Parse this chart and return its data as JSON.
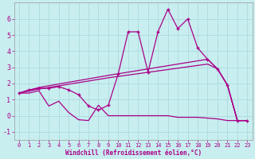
{
  "background_color": "#c8eef0",
  "grid_color": "#b0dde0",
  "line_color": "#aa0088",
  "xlim": [
    -0.5,
    23.5
  ],
  "ylim": [
    -1.5,
    7.0
  ],
  "xlabel": "Windchill (Refroidissement éolien,°C)",
  "yticks": [
    -1,
    0,
    1,
    2,
    3,
    4,
    5,
    6
  ],
  "xticks": [
    0,
    1,
    2,
    3,
    4,
    5,
    6,
    7,
    8,
    9,
    10,
    11,
    12,
    13,
    14,
    15,
    16,
    17,
    18,
    19,
    20,
    21,
    22,
    23
  ],
  "s1_x": [
    0,
    1,
    2,
    3,
    4,
    5,
    6,
    7,
    8,
    9,
    10,
    11,
    12,
    13,
    14,
    15,
    16,
    17,
    18,
    19,
    20,
    21,
    22,
    23
  ],
  "s1_y": [
    1.4,
    1.6,
    1.7,
    1.7,
    1.8,
    1.6,
    1.3,
    0.6,
    0.35,
    0.65,
    2.6,
    5.2,
    5.2,
    2.7,
    5.2,
    6.6,
    5.4,
    6.0,
    4.2,
    3.5,
    2.9,
    1.9,
    -0.3,
    -0.3
  ],
  "s2_x": [
    0,
    2,
    9,
    19,
    20,
    21,
    22,
    23
  ],
  "s2_y": [
    1.4,
    1.75,
    2.5,
    3.5,
    2.9,
    1.9,
    -0.3,
    -0.3
  ],
  "s3_x": [
    0,
    2,
    9,
    19,
    20,
    21,
    22,
    23
  ],
  "s3_y": [
    1.4,
    1.65,
    2.35,
    3.2,
    2.9,
    1.9,
    -0.3,
    -0.3
  ],
  "s4_x": [
    0,
    1,
    2,
    3,
    4,
    5,
    6,
    7,
    8,
    9,
    10,
    11,
    12,
    13,
    14,
    15,
    16,
    17,
    18,
    19,
    20,
    21,
    22,
    23
  ],
  "s4_y": [
    1.4,
    1.4,
    1.55,
    0.6,
    0.9,
    0.2,
    -0.25,
    -0.3,
    0.65,
    0.0,
    0.0,
    0.0,
    0.0,
    0.0,
    0.0,
    0.0,
    -0.1,
    -0.1,
    -0.1,
    -0.15,
    -0.2,
    -0.3,
    -0.3,
    -0.3
  ]
}
